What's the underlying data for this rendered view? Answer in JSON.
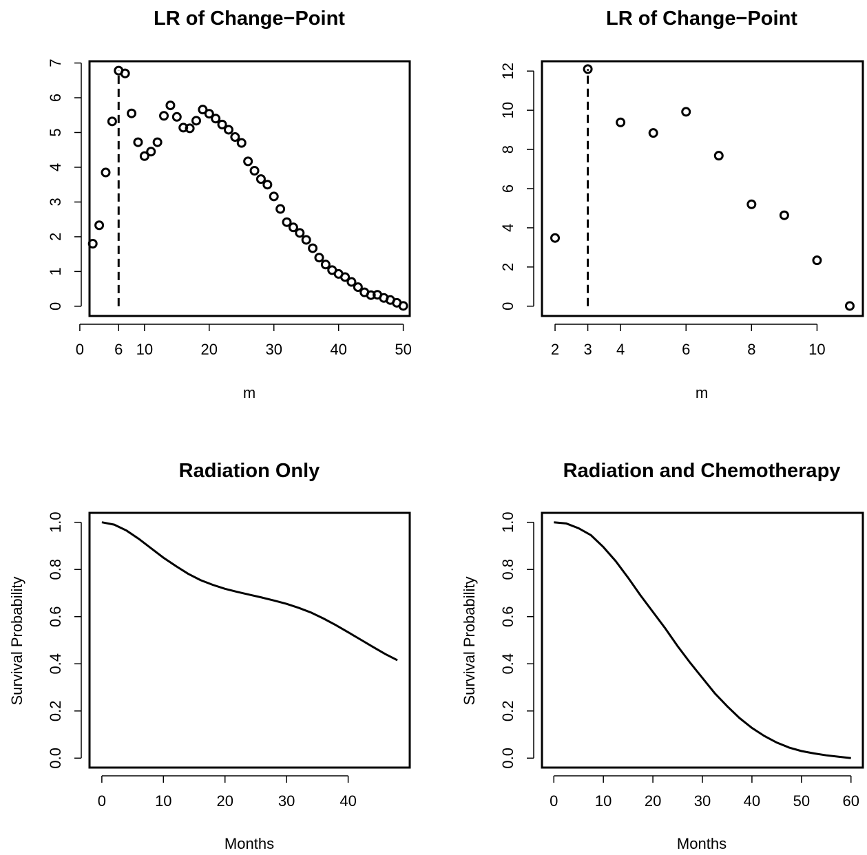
{
  "chart_data": [
    {
      "type": "scatter",
      "title": "LR of Change−Point",
      "xlabel": "m",
      "ylabel": "",
      "xlim": [
        1.5,
        51
      ],
      "ylim": [
        -0.28,
        7.05
      ],
      "xticks": [
        0,
        6,
        10,
        20,
        30,
        40,
        50
      ],
      "yticks": [
        0,
        1,
        2,
        3,
        4,
        5,
        6,
        7
      ],
      "change_point": 6,
      "x": [
        2,
        3,
        4,
        5,
        6,
        7,
        8,
        9,
        10,
        11,
        12,
        13,
        14,
        15,
        16,
        17,
        18,
        19,
        20,
        21,
        22,
        23,
        24,
        25,
        26,
        27,
        28,
        29,
        30,
        31,
        32,
        33,
        34,
        35,
        36,
        37,
        38,
        39,
        40,
        41,
        42,
        43,
        44,
        45,
        46,
        47,
        48,
        49,
        50
      ],
      "y": [
        1.8,
        2.33,
        3.85,
        5.32,
        6.78,
        6.7,
        5.55,
        4.72,
        4.32,
        4.45,
        4.72,
        5.48,
        5.78,
        5.45,
        5.14,
        5.12,
        5.34,
        5.66,
        5.54,
        5.4,
        5.23,
        5.08,
        4.87,
        4.7,
        4.17,
        3.9,
        3.66,
        3.5,
        3.16,
        2.8,
        2.42,
        2.27,
        2.11,
        1.91,
        1.67,
        1.4,
        1.2,
        1.04,
        0.93,
        0.84,
        0.7,
        0.55,
        0.4,
        0.32,
        0.33,
        0.24,
        0.18,
        0.1,
        0.01
      ]
    },
    {
      "type": "scatter",
      "title": "LR of Change−Point",
      "xlabel": "m",
      "ylabel": "",
      "xlim": [
        1.6,
        11.4
      ],
      "ylim": [
        -0.5,
        12.5
      ],
      "xticks": [
        2,
        3,
        4,
        6,
        8,
        10
      ],
      "yticks": [
        0,
        2,
        4,
        6,
        8,
        10,
        12
      ],
      "change_point": 3,
      "x": [
        2,
        3,
        4,
        5,
        6,
        7,
        8,
        9,
        10,
        11
      ],
      "y": [
        3.48,
        12.1,
        9.38,
        8.84,
        9.92,
        7.68,
        5.2,
        4.64,
        2.34,
        0.01
      ]
    },
    {
      "type": "line",
      "title": "Radiation Only",
      "xlabel": "Months",
      "ylabel": "Survival Probability",
      "xlim": [
        -2,
        50
      ],
      "ylim": [
        -0.04,
        1.04
      ],
      "xticks": [
        0,
        10,
        20,
        30,
        40
      ],
      "yticks": [
        "0.0",
        "0.2",
        "0.4",
        "0.6",
        "0.8",
        "1.0"
      ],
      "x": [
        0,
        2,
        4,
        6,
        8,
        10,
        12,
        14,
        16,
        18,
        20,
        22,
        24,
        26,
        28,
        30,
        32,
        34,
        36,
        38,
        40,
        42,
        44,
        46,
        48
      ],
      "y": [
        1.0,
        0.99,
        0.965,
        0.93,
        0.89,
        0.85,
        0.815,
        0.782,
        0.755,
        0.735,
        0.718,
        0.705,
        0.693,
        0.681,
        0.668,
        0.654,
        0.637,
        0.617,
        0.592,
        0.564,
        0.534,
        0.503,
        0.472,
        0.442,
        0.415
      ]
    },
    {
      "type": "line",
      "title": "Radiation and Chemotherapy",
      "xlabel": "Months",
      "ylabel": "Survival Probability",
      "xlim": [
        -2.4,
        62.4
      ],
      "ylim": [
        -0.04,
        1.04
      ],
      "xticks": [
        0,
        10,
        20,
        30,
        40,
        50,
        60
      ],
      "yticks": [
        "0.0",
        "0.2",
        "0.4",
        "0.6",
        "0.8",
        "1.0"
      ],
      "x": [
        0,
        2.5,
        5,
        7.5,
        10,
        12.5,
        15,
        17.5,
        20,
        22.5,
        25,
        27.5,
        30,
        32.5,
        35,
        37.5,
        40,
        42.5,
        45,
        47.5,
        50,
        52.5,
        55,
        57.5,
        60
      ],
      "y": [
        1.0,
        0.995,
        0.975,
        0.945,
        0.895,
        0.835,
        0.765,
        0.69,
        0.62,
        0.55,
        0.475,
        0.405,
        0.34,
        0.275,
        0.22,
        0.17,
        0.128,
        0.094,
        0.066,
        0.045,
        0.03,
        0.02,
        0.012,
        0.006,
        0.0
      ]
    }
  ]
}
